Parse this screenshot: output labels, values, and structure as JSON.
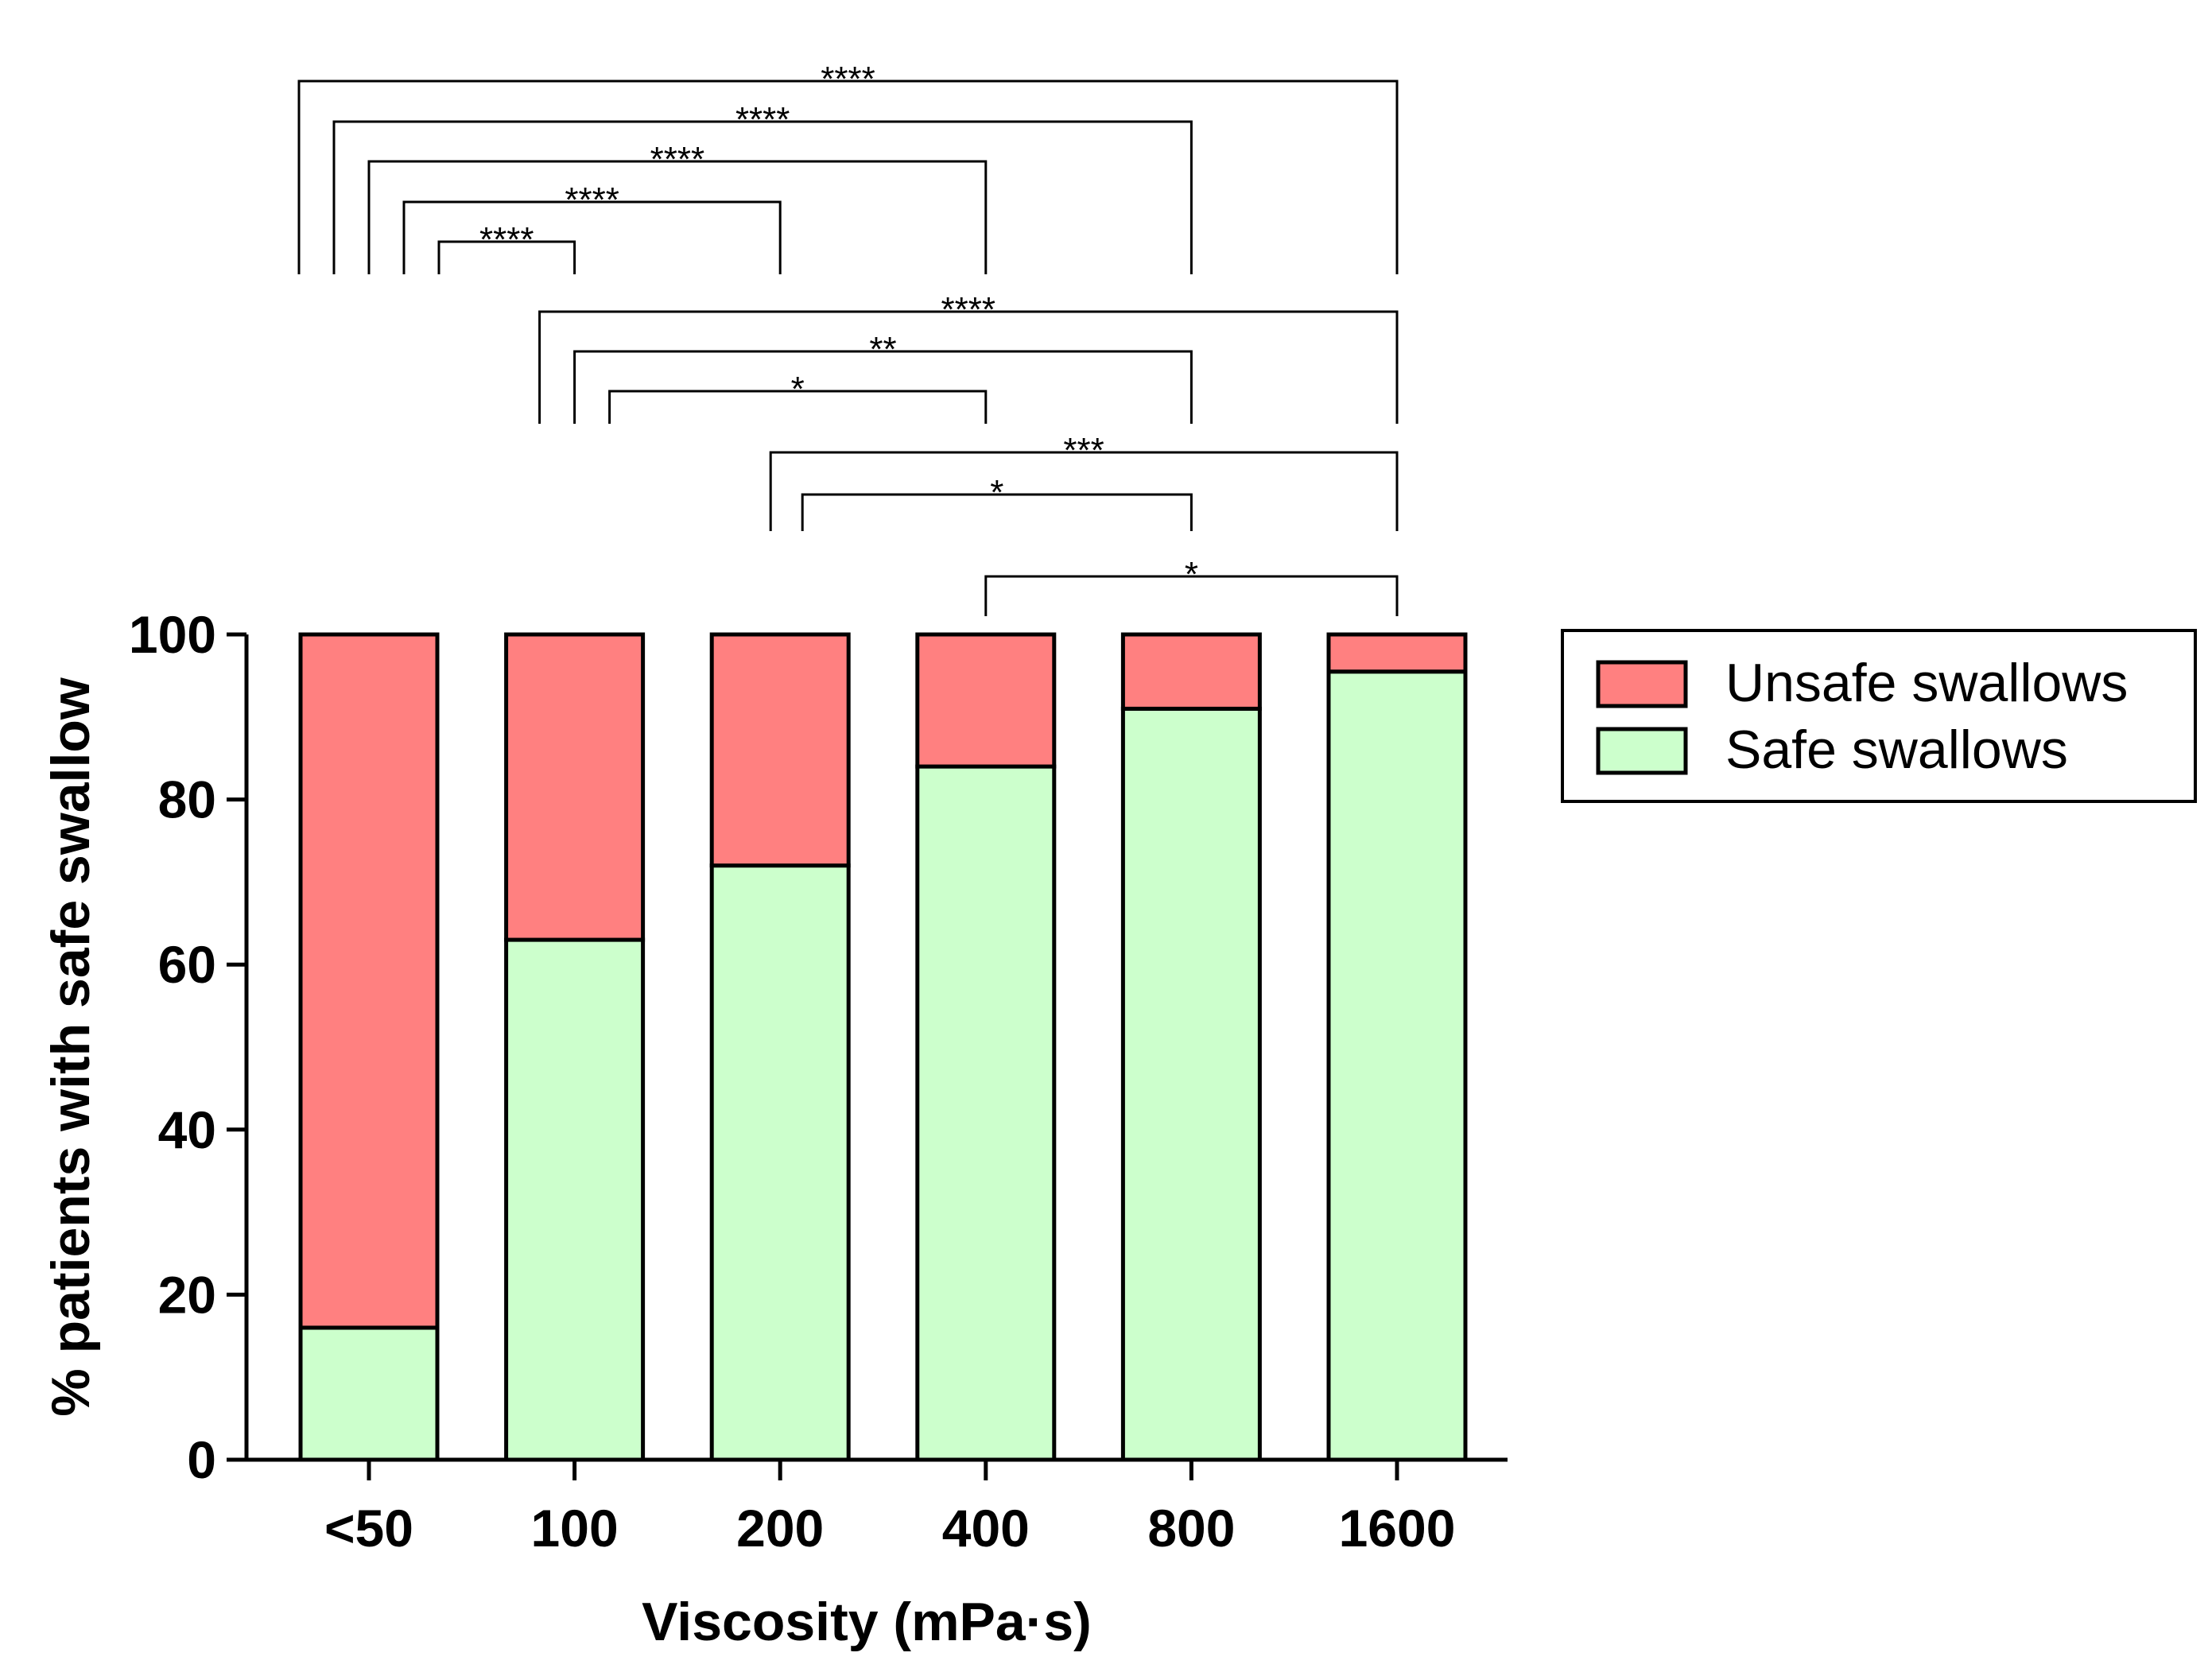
{
  "chart_data": {
    "type": "bar",
    "stacked": true,
    "title": "",
    "xlabel": "Viscosity (mPa·s)",
    "ylabel": "% patients with safe swallow",
    "ylim": [
      0,
      100
    ],
    "yticks": [
      "0",
      "20",
      "40",
      "60",
      "80",
      "100"
    ],
    "categories": [
      "<50",
      "100",
      "200",
      "400",
      "800",
      "1600"
    ],
    "series": [
      {
        "name": "Safe swallows",
        "color": "#ccffcc",
        "values": [
          16,
          63,
          72,
          84,
          91,
          95.5
        ]
      },
      {
        "name": "Unsafe swallows",
        "color": "#ff8080",
        "values": [
          84,
          37,
          28,
          16,
          9,
          4.5
        ]
      }
    ],
    "legend": {
      "position": "right",
      "entries": [
        {
          "label": "Unsafe swallows",
          "color": "#ff8080"
        },
        {
          "label": "Safe swallows",
          "color": "#ccffcc"
        }
      ]
    },
    "comparisons": [
      {
        "from": "<50",
        "to": "1600",
        "label": "****"
      },
      {
        "from": "<50",
        "to": "800",
        "label": "****"
      },
      {
        "from": "<50",
        "to": "400",
        "label": "****"
      },
      {
        "from": "<50",
        "to": "200",
        "label": "****"
      },
      {
        "from": "<50",
        "to": "100",
        "label": "****"
      },
      {
        "from": "100",
        "to": "1600",
        "label": "****"
      },
      {
        "from": "100",
        "to": "800",
        "label": "**"
      },
      {
        "from": "100",
        "to": "400",
        "label": "*"
      },
      {
        "from": "200",
        "to": "1600",
        "label": "***"
      },
      {
        "from": "200",
        "to": "800",
        "label": "*"
      },
      {
        "from": "400",
        "to": "1600",
        "label": "*"
      }
    ]
  }
}
